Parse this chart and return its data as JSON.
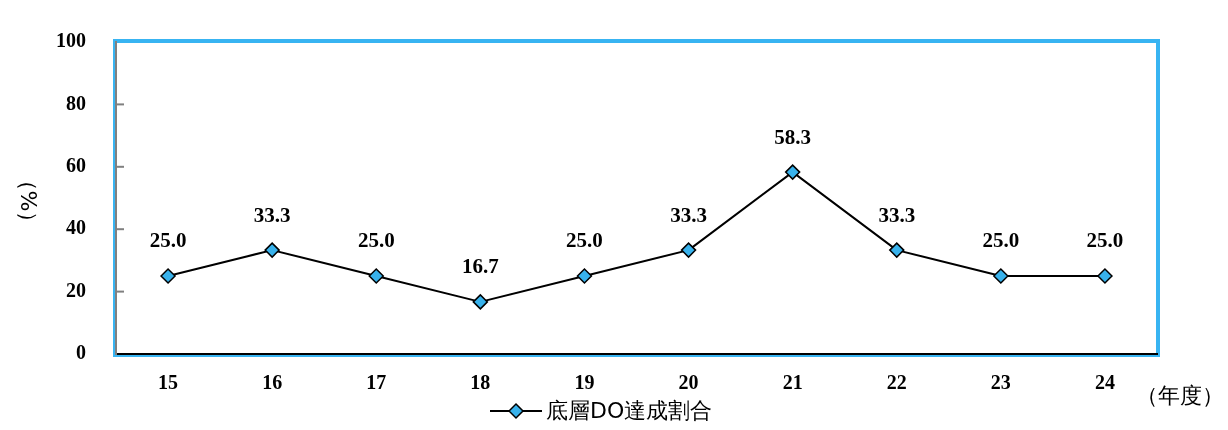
{
  "chart_data": {
    "type": "line",
    "ylabel": "（%）",
    "xlabel": "（年度）",
    "categories": [
      "15",
      "16",
      "17",
      "18",
      "19",
      "20",
      "21",
      "22",
      "23",
      "24"
    ],
    "series": [
      {
        "name": "底層DO達成割合",
        "color": "#000000",
        "colors": [
          "#38b2ec",
          "#38b2ec",
          "#38b2ec",
          "#38b2ec",
          "#38b2ec",
          "#38b2ec",
          "#38b2ec",
          "#38b2ec",
          "#38b2ec",
          "#38b2ec"
        ],
        "values": [
          25.0,
          33.3,
          25.0,
          16.7,
          25.0,
          33.3,
          58.3,
          33.3,
          25.0,
          25.0
        ],
        "value_labels": [
          "25.0",
          "33.3",
          "25.0",
          "16.7",
          "25.0",
          "33.3",
          "58.3",
          "33.3",
          "25.0",
          "25.0"
        ]
      }
    ],
    "ylim": [
      0,
      100
    ],
    "yticks": [
      0,
      20,
      40,
      60,
      80,
      100
    ],
    "grid": false,
    "legend": "bottom",
    "marker": "diamond",
    "line_style": "solid"
  }
}
